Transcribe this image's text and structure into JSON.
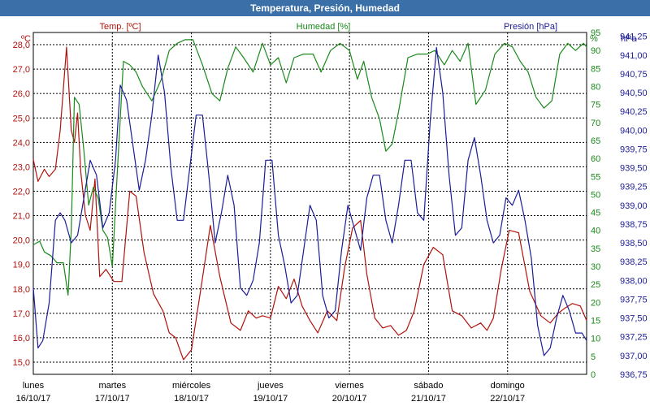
{
  "window": {
    "title": "Temperatura, Presión, Humedad"
  },
  "chart_data": {
    "type": "line",
    "title": "Temperatura, Presión, Humedad",
    "grid": true,
    "legend_placement": "top",
    "x": {
      "range": [
        0,
        7
      ],
      "tick_labels": [
        {
          "day": "lunes",
          "date": "16/10/17"
        },
        {
          "day": "martes",
          "date": "17/10/17"
        },
        {
          "day": "miércoles",
          "date": "18/10/17"
        },
        {
          "day": "jueves",
          "date": "19/10/17"
        },
        {
          "day": "viernes",
          "date": "20/10/17"
        },
        {
          "day": "sábado",
          "date": "21/10/17"
        },
        {
          "day": "domingo",
          "date": "22/10/17"
        }
      ]
    },
    "axes": {
      "temp": {
        "unit": "ºC",
        "min": 14.5,
        "max": 28.5,
        "ticks": [
          "15,0",
          "16,0",
          "17,0",
          "18,0",
          "19,0",
          "20,0",
          "21,0",
          "22,0",
          "23,0",
          "24,0",
          "25,0",
          "26,0",
          "27,0",
          "28,0"
        ]
      },
      "hum": {
        "unit": "%",
        "min": 0,
        "max": 95,
        "ticks": [
          "0",
          "5",
          "10",
          "15",
          "20",
          "25",
          "30",
          "35",
          "40",
          "45",
          "50",
          "55",
          "60",
          "65",
          "70",
          "75",
          "80",
          "85",
          "90",
          "95"
        ]
      },
      "pres": {
        "unit": "hPa",
        "min": 936.75,
        "max": 941.3,
        "ticks": [
          "936,75",
          "937,00",
          "937,25",
          "937,50",
          "937,75",
          "938,00",
          "938,25",
          "938,50",
          "938,75",
          "939,00",
          "939,25",
          "939,50",
          "939,75",
          "940,00",
          "940,25",
          "940,50",
          "940,75",
          "941,00",
          "941,25"
        ]
      }
    },
    "colors": {
      "temp": "#b0120d",
      "hum": "#1a8a1a",
      "pres": "#1c1c98",
      "title_bar": "#3a6fa8"
    },
    "series": [
      {
        "key": "temp",
        "name": "Temp. [ºC]",
        "x": [
          0,
          0.06,
          0.14,
          0.2,
          0.28,
          0.34,
          0.42,
          0.48,
          0.52,
          0.56,
          0.6,
          0.66,
          0.72,
          0.78,
          0.84,
          0.92,
          1.02,
          1.12,
          1.22,
          1.3,
          1.4,
          1.52,
          1.64,
          1.72,
          1.8,
          1.9,
          2.0,
          2.12,
          2.24,
          2.36,
          2.5,
          2.62,
          2.72,
          2.82,
          2.9,
          3.0,
          3.1,
          3.2,
          3.3,
          3.4,
          3.5,
          3.6,
          3.72,
          3.84,
          3.94,
          4.04,
          4.14,
          4.22,
          4.32,
          4.42,
          4.52,
          4.62,
          4.72,
          4.82,
          4.94,
          5.06,
          5.18,
          5.3,
          5.42,
          5.54,
          5.66,
          5.74,
          5.82,
          5.92,
          6.02,
          6.14,
          6.28,
          6.42,
          6.54,
          6.64,
          6.72,
          6.82,
          6.92,
          7.0
        ],
        "y": [
          23.3,
          22.4,
          22.9,
          22.6,
          22.9,
          24.5,
          27.9,
          24.5,
          24.0,
          25.2,
          22.8,
          21.0,
          20.4,
          22.5,
          18.5,
          18.8,
          18.3,
          18.3,
          22.0,
          21.8,
          19.5,
          17.8,
          17.1,
          16.2,
          16.0,
          15.1,
          15.5,
          18.0,
          20.6,
          18.5,
          16.6,
          16.3,
          17.1,
          16.8,
          16.9,
          16.8,
          18.1,
          17.6,
          18.4,
          17.3,
          16.7,
          16.2,
          17.1,
          16.7,
          18.9,
          20.5,
          20.8,
          18.6,
          16.8,
          16.4,
          16.5,
          16.1,
          16.3,
          17.1,
          19.0,
          19.7,
          19.4,
          17.1,
          16.9,
          16.4,
          16.6,
          16.3,
          16.8,
          18.8,
          20.4,
          20.3,
          17.9,
          16.9,
          16.6,
          17.0,
          17.2,
          17.4,
          17.3,
          16.7
        ]
      },
      {
        "key": "hum",
        "name": "Humedad [%]",
        "x": [
          0,
          0.08,
          0.14,
          0.22,
          0.3,
          0.38,
          0.44,
          0.48,
          0.52,
          0.58,
          0.64,
          0.7,
          0.76,
          0.82,
          0.88,
          0.94,
          1.0,
          1.06,
          1.14,
          1.22,
          1.3,
          1.38,
          1.5,
          1.62,
          1.72,
          1.82,
          1.92,
          2.02,
          2.14,
          2.26,
          2.36,
          2.46,
          2.56,
          2.66,
          2.78,
          2.9,
          3.0,
          3.1,
          3.2,
          3.3,
          3.42,
          3.54,
          3.64,
          3.76,
          3.88,
          4.0,
          4.1,
          4.18,
          4.28,
          4.38,
          4.46,
          4.54,
          4.62,
          4.74,
          4.86,
          4.98,
          5.08,
          5.2,
          5.3,
          5.4,
          5.5,
          5.6,
          5.72,
          5.84,
          5.96,
          6.06,
          6.16,
          6.26,
          6.36,
          6.46,
          6.56,
          6.66,
          6.76,
          6.86,
          6.96,
          7.0
        ],
        "y": [
          36,
          37,
          34,
          33,
          31,
          31,
          22,
          40,
          77,
          75,
          62,
          47,
          52,
          49,
          40,
          38,
          30,
          55,
          87,
          86,
          84,
          80,
          76,
          82,
          90,
          92,
          93,
          93,
          86,
          78,
          76,
          85,
          91,
          88,
          84,
          92,
          86,
          88,
          81,
          88,
          89,
          89,
          84,
          90,
          92,
          90,
          82,
          87,
          77,
          71,
          62,
          64,
          73,
          88,
          89,
          89,
          90,
          86,
          90,
          87,
          92,
          75,
          79,
          89,
          92,
          91,
          87,
          84,
          77,
          74,
          76,
          89,
          92,
          90,
          92,
          91
        ]
      },
      {
        "key": "pres",
        "name": "Presión [hPa]",
        "x": [
          0,
          0.06,
          0.12,
          0.2,
          0.28,
          0.34,
          0.4,
          0.48,
          0.56,
          0.64,
          0.72,
          0.8,
          0.88,
          0.96,
          1.04,
          1.1,
          1.18,
          1.26,
          1.34,
          1.42,
          1.5,
          1.58,
          1.66,
          1.74,
          1.82,
          1.9,
          1.98,
          2.06,
          2.14,
          2.22,
          2.3,
          2.38,
          2.46,
          2.54,
          2.62,
          2.7,
          2.78,
          2.86,
          2.94,
          3.02,
          3.1,
          3.18,
          3.26,
          3.34,
          3.42,
          3.5,
          3.58,
          3.66,
          3.74,
          3.82,
          3.9,
          3.98,
          4.06,
          4.14,
          4.22,
          4.3,
          4.38,
          4.46,
          4.54,
          4.62,
          4.7,
          4.78,
          4.86,
          4.94,
          5.02,
          5.1,
          5.18,
          5.26,
          5.34,
          5.42,
          5.5,
          5.58,
          5.66,
          5.74,
          5.82,
          5.9,
          5.98,
          6.06,
          6.14,
          6.22,
          6.3,
          6.38,
          6.46,
          6.54,
          6.62,
          6.7,
          6.78,
          6.86,
          6.94,
          7.0
        ],
        "y": [
          937.9,
          937.1,
          937.2,
          937.7,
          938.8,
          938.9,
          938.8,
          938.5,
          938.6,
          939.1,
          939.6,
          939.4,
          938.7,
          938.9,
          939.6,
          940.6,
          940.4,
          939.8,
          939.2,
          939.6,
          940.2,
          941.0,
          940.5,
          939.5,
          938.8,
          938.8,
          939.5,
          940.2,
          940.2,
          939.4,
          938.5,
          938.9,
          939.4,
          939.0,
          937.9,
          937.8,
          938.0,
          938.5,
          939.6,
          939.6,
          938.6,
          938.2,
          937.7,
          937.8,
          938.4,
          939.0,
          938.8,
          937.8,
          937.5,
          937.6,
          938.4,
          939.0,
          938.7,
          938.4,
          939.1,
          939.4,
          939.4,
          938.8,
          938.5,
          939.0,
          939.6,
          939.6,
          938.9,
          938.8,
          940.1,
          941.1,
          940.5,
          939.4,
          938.6,
          938.7,
          939.6,
          939.9,
          939.4,
          938.8,
          938.5,
          938.6,
          939.1,
          939.0,
          939.2,
          938.8,
          938.3,
          937.4,
          937.0,
          937.1,
          937.5,
          937.8,
          937.6,
          937.3,
          937.3,
          937.2
        ]
      }
    ]
  }
}
